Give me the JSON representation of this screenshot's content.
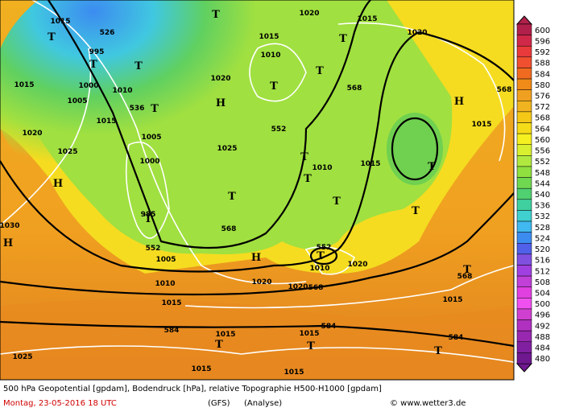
{
  "map_labels": [
    "T",
    "T",
    "T",
    "T",
    "T",
    "T",
    "T",
    "T",
    "T",
    "T",
    "T",
    "T",
    "T",
    "T",
    "T",
    "T",
    "T",
    "T",
    "T",
    "T",
    "H",
    "H",
    "H",
    "H",
    "H",
    "1015",
    "1015",
    "1015",
    "1015",
    "1015",
    "1015",
    "1015",
    "1015",
    "1015",
    "1015",
    "1015",
    "1015",
    "1015",
    "1020",
    "1020",
    "1020",
    "1020",
    "1020",
    "1020",
    "1020",
    "1010",
    "1010",
    "1010",
    "1010",
    "1010",
    "1005",
    "1005",
    "1005",
    "1000",
    "1000",
    "995",
    "1025",
    "1025",
    "1025",
    "1030",
    "985",
    "526",
    "536",
    "552",
    "552",
    "552",
    "568",
    "568",
    "568",
    "568",
    "568",
    "584",
    "584",
    "584"
  ],
  "scale": {
    "labels": [
      600,
      596,
      592,
      588,
      584,
      580,
      576,
      572,
      568,
      564,
      560,
      556,
      552,
      548,
      544,
      540,
      536,
      532,
      528,
      524,
      520,
      516,
      512,
      508,
      504,
      500,
      496,
      492,
      488,
      484,
      480
    ],
    "colors": [
      "#b0204a",
      "#d02848",
      "#e83a3a",
      "#f05030",
      "#f06a20",
      "#f08a18",
      "#f0a020",
      "#f0b420",
      "#f5c818",
      "#f5dc18",
      "#f5f020",
      "#d8f030",
      "#b0e840",
      "#90e040",
      "#70d850",
      "#50d070",
      "#40d0a0",
      "#40d0d0",
      "#40b8f0",
      "#3c8cf0",
      "#5060e8",
      "#8050e0",
      "#a040e0",
      "#c040d8",
      "#e040e0",
      "#f050f0",
      "#d040d0",
      "#b030c0",
      "#9828b0",
      "#8020a0",
      "#701890"
    ]
  },
  "footer": {
    "line1": "500 hPa Geopotential [gpdam], Bodendruck [hPa], relative Topographie H500-H1000 [gpdam]",
    "date": "Montag, 23-05-2016  18 UTC",
    "model": "(GFS)",
    "kind": "(Analyse)",
    "credit": "© www.wetter3.de"
  }
}
